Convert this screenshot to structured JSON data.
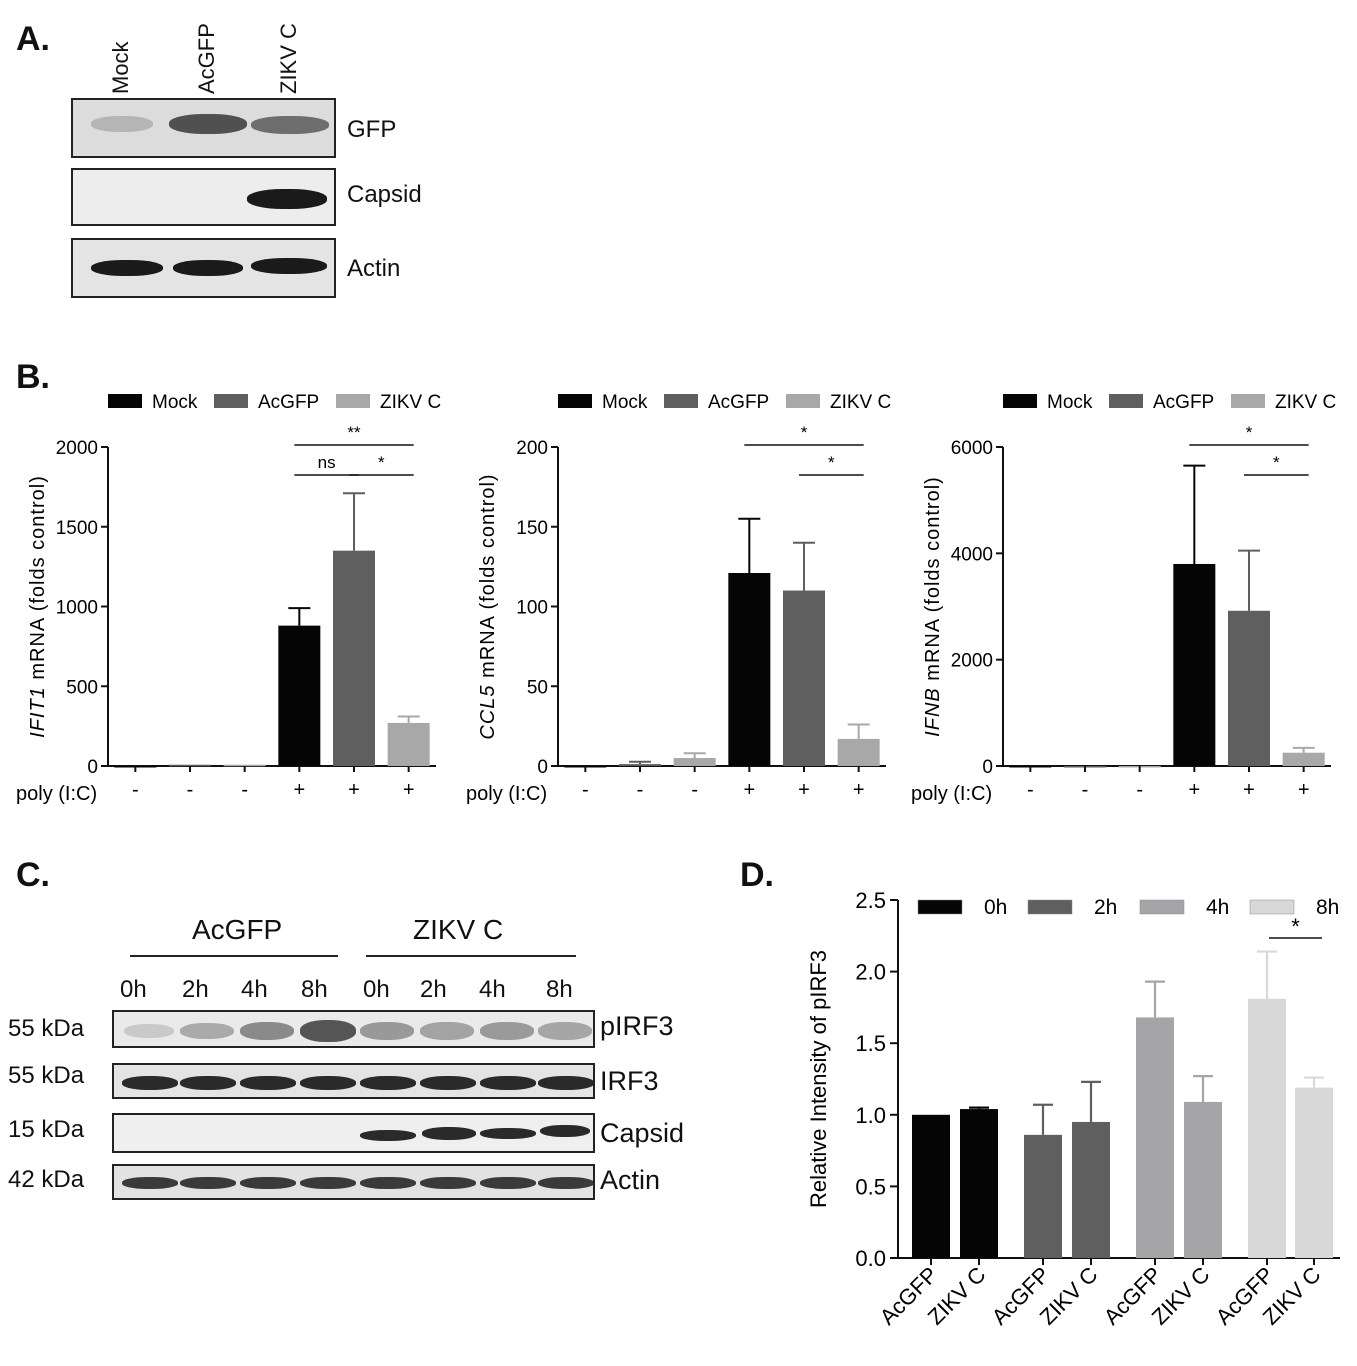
{
  "panels": {
    "a": "A.",
    "b": "B.",
    "c": "C.",
    "d": "D."
  },
  "panel_a": {
    "lanes": [
      "Mock",
      "AcGFP",
      "ZIKV C"
    ],
    "blots": [
      "GFP",
      "Capsid",
      "Actin"
    ]
  },
  "panel_c": {
    "groups": [
      "AcGFP",
      "ZIKV C"
    ],
    "times": [
      "0h",
      "2h",
      "4h",
      "8h",
      "0h",
      "2h",
      "4h",
      "8h"
    ],
    "blots": [
      {
        "name": "pIRF3",
        "kda": "55 kDa"
      },
      {
        "name": "IRF3",
        "kda": "55 kDa"
      },
      {
        "name": "Capsid",
        "kda": "15 kDa"
      },
      {
        "name": "Actin",
        "kda": "42 kDa"
      }
    ]
  },
  "colors": {
    "mock": "#050505",
    "acgfp": "#5f5f5f",
    "zikv": "#a8a8a8",
    "h0": "#050505",
    "h2": "#5f5f5f",
    "h4": "#a5a5a8",
    "h8": "#d8d8d8"
  },
  "chart_data": [
    {
      "type": "bar",
      "id": "B1",
      "legend": [
        "Mock",
        "AcGFP",
        "ZIKV C"
      ],
      "ylabel_italic": "IFIT1",
      "ylabel_rest": " mRNA  (folds control)",
      "ylim": [
        0,
        2000
      ],
      "yticks": [
        0,
        500,
        1000,
        1500,
        2000
      ],
      "xprefix": "poly (I:C)",
      "xsigns": [
        "-",
        "-",
        "-",
        "+",
        "+",
        "+"
      ],
      "values": [
        0,
        8,
        8,
        880,
        1350,
        270
      ],
      "errors": [
        0,
        0,
        0,
        110,
        360,
        40
      ],
      "sig": [
        {
          "from": 3,
          "to": 5,
          "level": 1,
          "label": "**"
        },
        {
          "from": 3,
          "to": 4,
          "level": 0,
          "label": "ns"
        },
        {
          "from": 4,
          "to": 5,
          "level": 0,
          "label": "*"
        }
      ]
    },
    {
      "type": "bar",
      "id": "B2",
      "legend": [
        "Mock",
        "AcGFP",
        "ZIKV C"
      ],
      "ylabel_italic": "CCL5",
      "ylabel_rest": " mRNA  (folds control)",
      "ylim": [
        0,
        200
      ],
      "yticks": [
        0,
        50,
        100,
        150,
        200
      ],
      "xprefix": "poly (I:C)",
      "xsigns": [
        "-",
        "-",
        "-",
        "+",
        "+",
        "+"
      ],
      "values": [
        0,
        1.2,
        5,
        121,
        110,
        17
      ],
      "errors": [
        0,
        1.5,
        3,
        34,
        30,
        9
      ],
      "sig": [
        {
          "from": 3,
          "to": 5,
          "level": 1,
          "label": "*"
        },
        {
          "from": 4,
          "to": 5,
          "level": 0,
          "label": "*"
        }
      ]
    },
    {
      "type": "bar",
      "id": "B3",
      "legend": [
        "Mock",
        "AcGFP",
        "ZIKV C"
      ],
      "ylabel_italic": "IFNB",
      "ylabel_rest": " mRNA  (folds control)",
      "ylim": [
        0,
        6000
      ],
      "yticks": [
        0,
        2000,
        4000,
        6000
      ],
      "xprefix": "poly (I:C)",
      "xsigns": [
        "-",
        "-",
        "-",
        "+",
        "+",
        "+"
      ],
      "values": [
        0,
        0,
        0,
        3800,
        2920,
        250
      ],
      "errors": [
        0,
        0,
        0,
        1850,
        1130,
        90
      ],
      "sig": [
        {
          "from": 3,
          "to": 5,
          "level": 1,
          "label": "*"
        },
        {
          "from": 4,
          "to": 5,
          "level": 0,
          "label": "*"
        }
      ]
    },
    {
      "type": "bar",
      "id": "D",
      "legend": [
        "0h",
        "2h",
        "4h",
        "8h"
      ],
      "ylabel": "Relative Intensity of pIRF3",
      "ylim": [
        0,
        2.5
      ],
      "yticks": [
        "0.0",
        "0.5",
        "1.0",
        "1.5",
        "2.0",
        "2.5"
      ],
      "categories": [
        "AcGFP",
        "ZIKV C",
        "AcGFP",
        "ZIKV C",
        "AcGFP",
        "ZIKV C",
        "AcGFP",
        "ZIKV C"
      ],
      "values": [
        1.0,
        1.04,
        0.86,
        0.95,
        1.68,
        1.09,
        1.81,
        1.19
      ],
      "errors": [
        0,
        0.01,
        0.21,
        0.28,
        0.25,
        0.18,
        0.33,
        0.07
      ],
      "sig": [
        {
          "from": 6,
          "to": 7,
          "label": "*"
        }
      ]
    }
  ]
}
